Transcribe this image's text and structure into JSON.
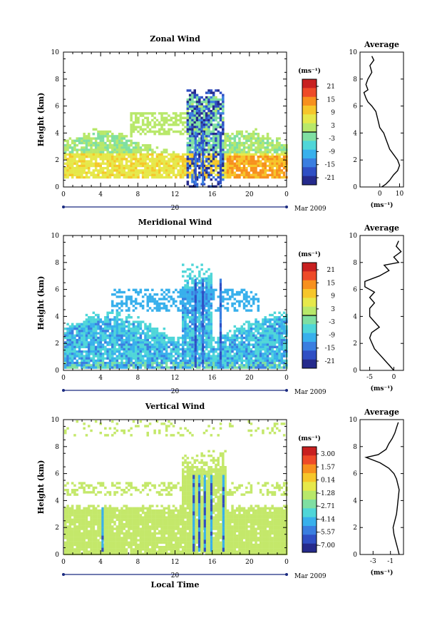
{
  "chart_data": [
    {
      "type": "heatmap",
      "title": "Zonal Wind",
      "ylabel": "Height (km)",
      "xlim": [
        0,
        24
      ],
      "ylim": [
        0,
        10
      ],
      "x_ticks": [
        "0",
        "4",
        "8",
        "12",
        "16",
        "20",
        "0"
      ],
      "y_ticks": [
        "0",
        "2",
        "4",
        "6",
        "8",
        "10"
      ],
      "date_axis_label": "20",
      "month_label": "Mar 2009",
      "colorbar": {
        "unit": "(ms⁻¹)",
        "ticks": [
          "21",
          "15",
          "9",
          "3",
          "-3",
          "-9",
          "-15",
          "-21"
        ]
      },
      "profile": {
        "title": "Average",
        "xlabel": "(ms⁻¹)",
        "x_ticks": [
          "0",
          "10"
        ],
        "xlim": [
          -10,
          12
        ],
        "y_ticks": [
          "0",
          "2",
          "4",
          "6",
          "8",
          "10"
        ],
        "points": [
          [
            1,
            0.0
          ],
          [
            3,
            0.2
          ],
          [
            5,
            0.5
          ],
          [
            7,
            0.9
          ],
          [
            9,
            1.2
          ],
          [
            10,
            1.6
          ],
          [
            9,
            2.0
          ],
          [
            7,
            2.4
          ],
          [
            5,
            2.8
          ],
          [
            4,
            3.2
          ],
          [
            3,
            3.6
          ],
          [
            2,
            4.0
          ],
          [
            0,
            4.4
          ],
          [
            -1,
            5.0
          ],
          [
            -2,
            5.6
          ],
          [
            -4,
            6.0
          ],
          [
            -6,
            6.3
          ],
          [
            -7,
            6.6
          ],
          [
            -8,
            7.0
          ],
          [
            -6,
            7.2
          ],
          [
            -7,
            7.6
          ],
          [
            -6,
            8.0
          ],
          [
            -4,
            8.5
          ],
          [
            -5,
            9.0
          ],
          [
            -3,
            9.4
          ],
          [
            -4,
            9.7
          ]
        ]
      }
    },
    {
      "type": "heatmap",
      "title": "Meridional Wind",
      "ylabel": "Height (km)",
      "xlim": [
        0,
        24
      ],
      "ylim": [
        0,
        10
      ],
      "x_ticks": [
        "0",
        "4",
        "8",
        "12",
        "16",
        "20",
        "0"
      ],
      "y_ticks": [
        "0",
        "2",
        "4",
        "6",
        "8",
        "10"
      ],
      "date_axis_label": "20",
      "month_label": "Mar 2009",
      "colorbar": {
        "unit": "(ms⁻¹)",
        "ticks": [
          "21",
          "15",
          "9",
          "3",
          "-3",
          "-9",
          "-15",
          "-21"
        ]
      },
      "profile": {
        "title": "Average",
        "xlabel": "(ms⁻¹)",
        "x_ticks": [
          "-5",
          "0"
        ],
        "xlim": [
          -7,
          2
        ],
        "y_ticks": [
          "0",
          "2",
          "4",
          "6",
          "8",
          "10"
        ],
        "points": [
          [
            0,
            0.0
          ],
          [
            -1,
            0.4
          ],
          [
            -2,
            0.8
          ],
          [
            -3,
            1.2
          ],
          [
            -4,
            1.6
          ],
          [
            -4.5,
            2.0
          ],
          [
            -5,
            2.4
          ],
          [
            -4.6,
            2.8
          ],
          [
            -3,
            3.2
          ],
          [
            -4,
            3.6
          ],
          [
            -5,
            4.0
          ],
          [
            -5,
            4.6
          ],
          [
            -4,
            5.0
          ],
          [
            -5,
            5.4
          ],
          [
            -4,
            5.8
          ],
          [
            -6,
            6.2
          ],
          [
            -6,
            6.6
          ],
          [
            -3,
            7.0
          ],
          [
            -1,
            7.4
          ],
          [
            -2,
            7.8
          ],
          [
            1,
            8.0
          ],
          [
            0,
            8.4
          ],
          [
            1.5,
            8.8
          ],
          [
            0.5,
            9.2
          ],
          [
            1,
            9.6
          ]
        ]
      }
    },
    {
      "type": "heatmap",
      "title": "Vertical Wind",
      "ylabel": "Height (km)",
      "xlabel": "Local Time",
      "xlim": [
        0,
        24
      ],
      "ylim": [
        0,
        10
      ],
      "x_ticks": [
        "0",
        "4",
        "8",
        "12",
        "16",
        "20",
        "0"
      ],
      "y_ticks": [
        "0",
        "2",
        "4",
        "6",
        "8",
        "10"
      ],
      "date_axis_label": "20",
      "month_label": "Mar 2009",
      "colorbar": {
        "unit": "(ms⁻¹)",
        "ticks": [
          "3.00",
          "1.57",
          "0.14",
          "-1.28",
          "-2.71",
          "-4.14",
          "-5.57",
          "-7.00"
        ]
      },
      "profile": {
        "title": "Average",
        "xlabel": "(ms⁻¹)",
        "x_ticks": [
          "-3",
          "-1"
        ],
        "xlim": [
          -4.5,
          0.5
        ],
        "y_ticks": [
          "0",
          "2",
          "4",
          "6",
          "8",
          "10"
        ],
        "points": [
          [
            0,
            0.0
          ],
          [
            -0.2,
            0.5
          ],
          [
            -0.4,
            1.0
          ],
          [
            -0.6,
            1.5
          ],
          [
            -0.7,
            2.0
          ],
          [
            -0.5,
            2.5
          ],
          [
            -0.3,
            3.0
          ],
          [
            -0.2,
            3.6
          ],
          [
            -0.1,
            4.2
          ],
          [
            0,
            4.8
          ],
          [
            -0.3,
            5.6
          ],
          [
            -0.6,
            6.0
          ],
          [
            -1.2,
            6.4
          ],
          [
            -2.2,
            6.8
          ],
          [
            -3.8,
            7.2
          ],
          [
            -2.4,
            7.4
          ],
          [
            -1.5,
            7.8
          ],
          [
            -1.2,
            8.2
          ],
          [
            -0.8,
            8.6
          ],
          [
            -0.5,
            9.0
          ],
          [
            -0.3,
            9.4
          ],
          [
            -0.1,
            9.8
          ]
        ]
      }
    }
  ]
}
